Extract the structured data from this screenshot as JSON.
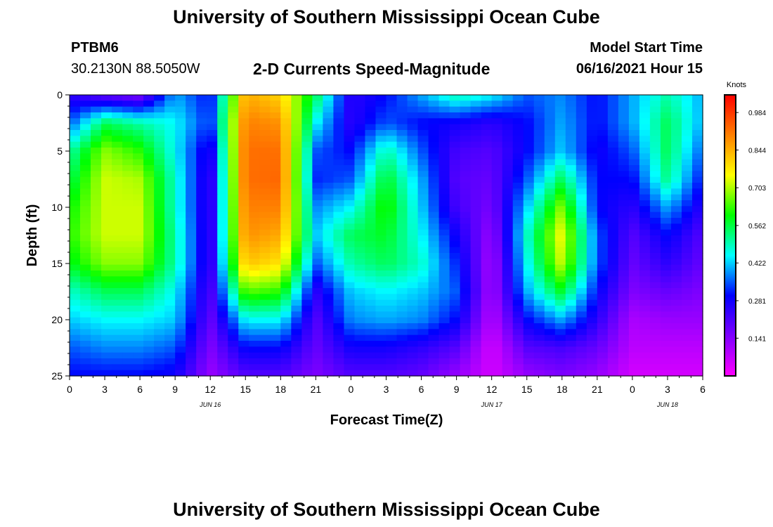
{
  "page": {
    "title_top": "University of Southern Mississippi Ocean Cube",
    "title_bottom": "University of Southern Mississippi Ocean Cube",
    "station_id": "PTBM6",
    "coordinates": "30.2130N  88.5050W",
    "plot_title": "2-D Currents Speed-Magnitude",
    "model_start_label": "Model Start Time",
    "model_start_value": "06/16/2021 Hour 15"
  },
  "chart_data": {
    "type": "heatmap",
    "title": "2-D Currents Speed-Magnitude",
    "xlabel": "Forecast Time(Z)",
    "ylabel": "Depth (ft)",
    "x_ticks": [
      "0",
      "3",
      "6",
      "9",
      "12",
      "15",
      "18",
      "21",
      "0",
      "3",
      "6",
      "9",
      "12",
      "15",
      "18",
      "21",
      "0",
      "3",
      "6"
    ],
    "x_day_labels": [
      {
        "label": "JUN 16",
        "hour": 12
      },
      {
        "label": "JUN 17",
        "hour": 36
      },
      {
        "label": "JUN 18",
        "hour": 51
      }
    ],
    "x_range_hours": [
      0,
      54
    ],
    "y_ticks": [
      0,
      5,
      10,
      15,
      20,
      25
    ],
    "ylim": [
      0,
      25
    ],
    "y_inverted": true,
    "colorbar": {
      "unit_label": "Knots",
      "tick_labels": [
        "0.984",
        "0.844",
        "0.703",
        "0.562",
        "0.422",
        "0.281",
        "0.141"
      ],
      "tick_values": [
        0.984,
        0.844,
        0.703,
        0.562,
        0.422,
        0.281,
        0.141
      ],
      "range": [
        0.0,
        1.05
      ],
      "stops": [
        "#ff00ff",
        "#7f00ff",
        "#0000ff",
        "#00ffff",
        "#00ff00",
        "#ffff00",
        "#ff8000",
        "#ff0000"
      ]
    },
    "time_hours": [
      0,
      3,
      6,
      9,
      12,
      15,
      18,
      21,
      24,
      27,
      30,
      33,
      36,
      39,
      42,
      45,
      48,
      51,
      54
    ],
    "depth_ft": [
      0,
      2.5,
      5,
      7.5,
      10,
      12.5,
      15,
      17.5,
      20,
      22.5,
      25
    ],
    "speed_knots": [
      [
        0.25,
        0.18,
        0.15,
        0.4,
        0.3,
        0.85,
        0.8,
        0.55,
        0.25,
        0.3,
        0.4,
        0.5,
        0.45,
        0.35,
        0.38,
        0.3,
        0.4,
        0.5,
        0.4
      ],
      [
        0.35,
        0.55,
        0.5,
        0.45,
        0.32,
        0.9,
        0.88,
        0.45,
        0.25,
        0.35,
        0.3,
        0.28,
        0.25,
        0.3,
        0.4,
        0.3,
        0.4,
        0.55,
        0.4
      ],
      [
        0.5,
        0.68,
        0.62,
        0.45,
        0.25,
        0.92,
        0.92,
        0.35,
        0.3,
        0.5,
        0.35,
        0.22,
        0.2,
        0.3,
        0.42,
        0.28,
        0.35,
        0.55,
        0.35
      ],
      [
        0.55,
        0.72,
        0.7,
        0.48,
        0.22,
        0.92,
        0.93,
        0.32,
        0.35,
        0.58,
        0.4,
        0.2,
        0.18,
        0.35,
        0.55,
        0.3,
        0.3,
        0.52,
        0.3
      ],
      [
        0.6,
        0.72,
        0.72,
        0.48,
        0.22,
        0.9,
        0.9,
        0.38,
        0.45,
        0.62,
        0.42,
        0.22,
        0.16,
        0.42,
        0.68,
        0.3,
        0.25,
        0.4,
        0.25
      ],
      [
        0.62,
        0.72,
        0.72,
        0.5,
        0.22,
        0.88,
        0.85,
        0.42,
        0.55,
        0.58,
        0.45,
        0.28,
        0.12,
        0.48,
        0.75,
        0.35,
        0.2,
        0.3,
        0.2
      ],
      [
        0.58,
        0.68,
        0.68,
        0.5,
        0.22,
        0.82,
        0.78,
        0.35,
        0.5,
        0.55,
        0.48,
        0.32,
        0.1,
        0.45,
        0.72,
        0.35,
        0.18,
        0.25,
        0.18
      ],
      [
        0.48,
        0.55,
        0.55,
        0.45,
        0.2,
        0.65,
        0.62,
        0.25,
        0.42,
        0.45,
        0.42,
        0.35,
        0.1,
        0.4,
        0.58,
        0.3,
        0.15,
        0.18,
        0.15
      ],
      [
        0.42,
        0.45,
        0.45,
        0.42,
        0.18,
        0.45,
        0.45,
        0.2,
        0.38,
        0.4,
        0.38,
        0.3,
        0.08,
        0.3,
        0.4,
        0.25,
        0.1,
        0.12,
        0.12
      ],
      [
        0.35,
        0.38,
        0.38,
        0.35,
        0.15,
        0.3,
        0.3,
        0.18,
        0.28,
        0.28,
        0.25,
        0.2,
        0.05,
        0.2,
        0.22,
        0.18,
        0.08,
        0.08,
        0.08
      ],
      [
        0.3,
        0.3,
        0.3,
        0.28,
        0.12,
        0.2,
        0.2,
        0.15,
        0.2,
        0.2,
        0.18,
        0.12,
        0.05,
        0.12,
        0.15,
        0.12,
        0.05,
        0.05,
        0.05
      ]
    ]
  }
}
